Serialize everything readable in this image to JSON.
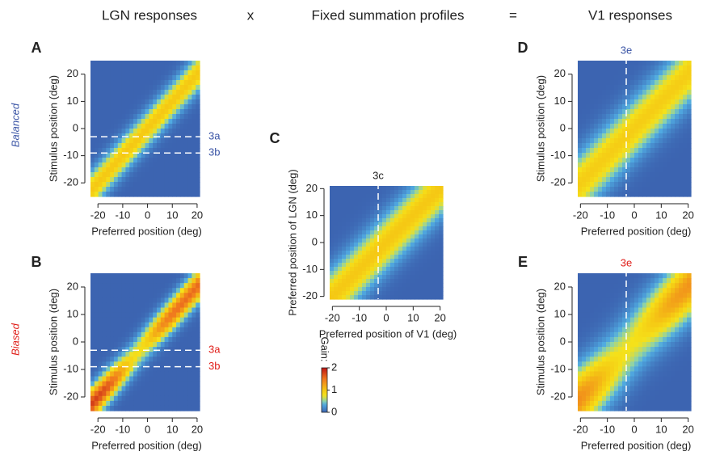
{
  "headers": [
    "LGN responses",
    "x",
    "Fixed summation profiles",
    "=",
    "V1 responses"
  ],
  "side_labels": [
    {
      "text": "Balanced",
      "color": "#3b55a6"
    },
    {
      "text": "Biased",
      "color": "#e0201b"
    }
  ],
  "colorbar": {
    "label": "Gain:",
    "lim": [
      0,
      2
    ],
    "ticks": [
      0,
      1,
      2
    ]
  },
  "chart_data": [
    {
      "type": "heatmap",
      "panel": "A",
      "xlabel": "Preferred position (deg)",
      "ylabel": "Stimulus position (deg)",
      "xlim": [
        -23,
        21
      ],
      "ylim": [
        -25,
        25
      ],
      "xticks": [
        -20,
        -10,
        0,
        10,
        20
      ],
      "yticks": [
        -20,
        -10,
        0,
        10,
        20
      ],
      "hlines": [
        {
          "value": -3,
          "label": "3a"
        },
        {
          "value": -9,
          "label": "3b"
        }
      ],
      "annotation_color": "#3b55a6"
    },
    {
      "type": "heatmap",
      "panel": "B",
      "xlabel": "Preferred position (deg)",
      "ylabel": "Stimulus position (deg)",
      "xlim": [
        -23,
        21
      ],
      "ylim": [
        -25,
        25
      ],
      "xticks": [
        -20,
        -10,
        0,
        10,
        20
      ],
      "yticks": [
        -20,
        -10,
        0,
        10,
        20
      ],
      "hlines": [
        {
          "value": -3,
          "label": "3a"
        },
        {
          "value": -9,
          "label": "3b"
        }
      ],
      "annotation_color": "#e0201b"
    },
    {
      "type": "heatmap",
      "panel": "C",
      "xlabel": "Preferred position of V1 (deg)",
      "ylabel": "Preferred position of LGN (deg)",
      "xlim": [
        -21,
        21
      ],
      "ylim": [
        -21,
        21
      ],
      "xticks": [
        -20,
        -10,
        0,
        10,
        20
      ],
      "yticks": [
        -20,
        -10,
        0,
        10,
        20
      ],
      "vlines": [
        {
          "value": -3,
          "label": "3c"
        }
      ],
      "annotation_color": "#222222"
    },
    {
      "type": "heatmap",
      "panel": "D",
      "xlabel": "Preferred position (deg)",
      "ylabel": "Stimulus position (deg)",
      "xlim": [
        -21,
        21
      ],
      "ylim": [
        -25,
        25
      ],
      "xticks": [
        -20,
        -10,
        0,
        10,
        20
      ],
      "yticks": [
        -20,
        -10,
        0,
        10,
        20
      ],
      "vlines": [
        {
          "value": -3,
          "label": "3e"
        }
      ],
      "annotation_color": "#3b55a6"
    },
    {
      "type": "heatmap",
      "panel": "E",
      "xlabel": "Preferred position (deg)",
      "ylabel": "Stimulus position (deg)",
      "xlim": [
        -21,
        21
      ],
      "ylim": [
        -25,
        25
      ],
      "xticks": [
        -20,
        -10,
        0,
        10,
        20
      ],
      "yticks": [
        -20,
        -10,
        0,
        10,
        20
      ],
      "vlines": [
        {
          "value": -3,
          "label": "3e"
        }
      ],
      "annotation_color": "#e0201b"
    }
  ]
}
